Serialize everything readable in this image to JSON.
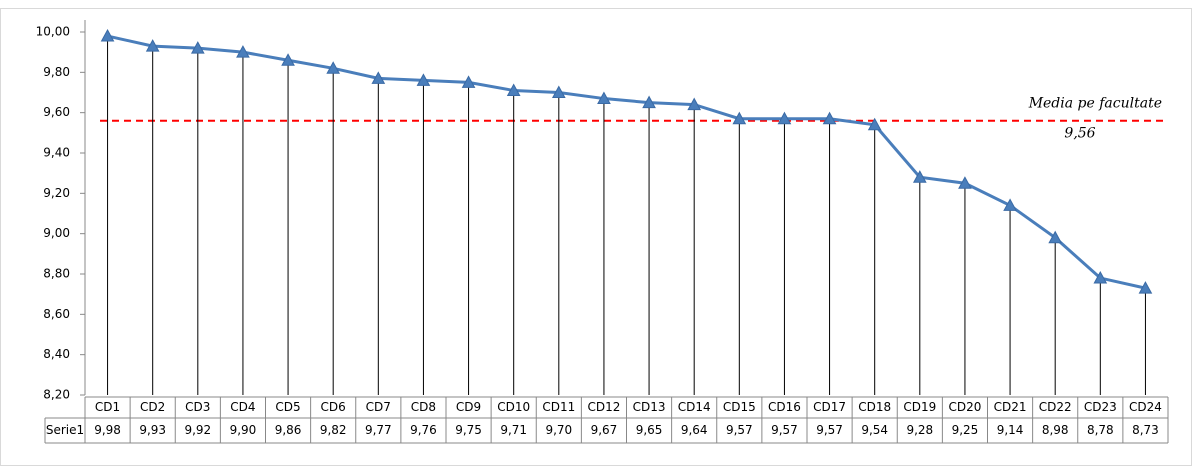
{
  "chart_data": {
    "type": "line",
    "categories": [
      "CD1",
      "CD2",
      "CD3",
      "CD4",
      "CD5",
      "CD6",
      "CD7",
      "CD8",
      "CD9",
      "CD10",
      "CD11",
      "CD12",
      "CD13",
      "CD14",
      "CD15",
      "CD16",
      "CD17",
      "CD18",
      "CD19",
      "CD20",
      "CD21",
      "CD22",
      "CD23",
      "CD24"
    ],
    "series": [
      {
        "name": "Serie1",
        "color": "#4a7ebb",
        "values": [
          9.98,
          9.93,
          9.92,
          9.9,
          9.86,
          9.82,
          9.77,
          9.76,
          9.75,
          9.71,
          9.7,
          9.67,
          9.65,
          9.64,
          9.57,
          9.57,
          9.57,
          9.54,
          9.28,
          9.25,
          9.14,
          8.98,
          8.78,
          8.73
        ],
        "value_labels": [
          "9,98",
          "9,93",
          "9,92",
          "9,90",
          "9,86",
          "9,82",
          "9,77",
          "9,76",
          "9,75",
          "9,71",
          "9,70",
          "9,67",
          "9,65",
          "9,64",
          "9,57",
          "9,57",
          "9,57",
          "9,54",
          "9,28",
          "9,25",
          "9,14",
          "8,98",
          "8,78",
          "8,73"
        ]
      }
    ],
    "ylim": [
      8.2,
      10.0
    ],
    "yticks": [
      {
        "value": 8.2,
        "label": "8,20"
      },
      {
        "value": 8.4,
        "label": "8,40"
      },
      {
        "value": 8.6,
        "label": "8,60"
      },
      {
        "value": 8.8,
        "label": "8,80"
      },
      {
        "value": 9.0,
        "label": "9,00"
      },
      {
        "value": 9.2,
        "label": "9,20"
      },
      {
        "value": 9.4,
        "label": "9,40"
      },
      {
        "value": 9.6,
        "label": "9,60"
      },
      {
        "value": 9.8,
        "label": "9,80"
      },
      {
        "value": 10.0,
        "label": "10,00"
      }
    ],
    "reference_line": {
      "name": "Media pe facultate",
      "value": 9.56,
      "label": "9,56",
      "color": "#ff0000"
    },
    "grid": false
  }
}
